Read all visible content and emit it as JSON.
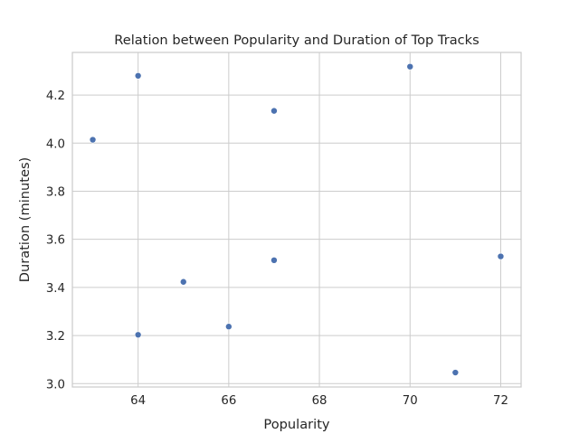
{
  "chart_data": {
    "type": "scatter",
    "title": "Relation between Popularity and Duration of Top Tracks",
    "xlabel": "Popularity",
    "ylabel": "Duration (minutes)",
    "xlim": [
      62.55,
      72.45
    ],
    "ylim": [
      2.986,
      4.377
    ],
    "xticks": [
      64,
      66,
      68,
      70,
      72
    ],
    "yticks": [
      3.0,
      3.2,
      3.4,
      3.6,
      3.8,
      4.0,
      4.2
    ],
    "xtick_labels": [
      "64",
      "66",
      "68",
      "70",
      "72"
    ],
    "ytick_labels": [
      "3.0",
      "3.2",
      "3.4",
      "3.6",
      "3.8",
      "4.0",
      "4.2"
    ],
    "grid": true,
    "point_color": "#4c72b0",
    "points": [
      {
        "x": 63,
        "y": 4.014
      },
      {
        "x": 64,
        "y": 4.28
      },
      {
        "x": 64,
        "y": 3.203
      },
      {
        "x": 65,
        "y": 3.423
      },
      {
        "x": 66,
        "y": 3.237
      },
      {
        "x": 67,
        "y": 4.134
      },
      {
        "x": 67,
        "y": 3.513
      },
      {
        "x": 70,
        "y": 4.318
      },
      {
        "x": 71,
        "y": 3.046
      },
      {
        "x": 72,
        "y": 3.529
      }
    ]
  }
}
